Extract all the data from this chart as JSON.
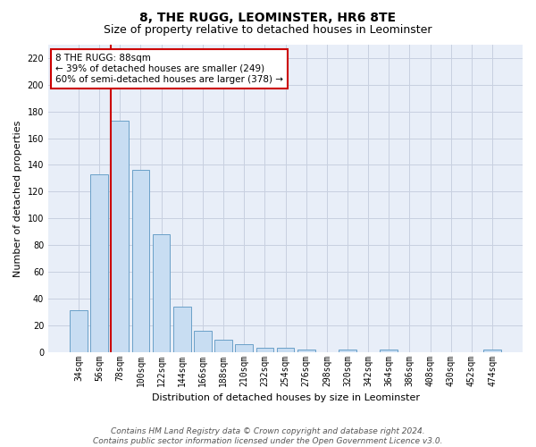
{
  "title": "8, THE RUGG, LEOMINSTER, HR6 8TE",
  "subtitle": "Size of property relative to detached houses in Leominster",
  "xlabel": "Distribution of detached houses by size in Leominster",
  "ylabel": "Number of detached properties",
  "categories": [
    "34sqm",
    "56sqm",
    "78sqm",
    "100sqm",
    "122sqm",
    "144sqm",
    "166sqm",
    "188sqm",
    "210sqm",
    "232sqm",
    "254sqm",
    "276sqm",
    "298sqm",
    "320sqm",
    "342sqm",
    "364sqm",
    "386sqm",
    "408sqm",
    "430sqm",
    "452sqm",
    "474sqm"
  ],
  "values": [
    31,
    133,
    173,
    136,
    88,
    34,
    16,
    9,
    6,
    3,
    3,
    2,
    0,
    2,
    0,
    2,
    0,
    0,
    0,
    0,
    2
  ],
  "bar_color": "#c8ddf2",
  "bar_edge_color": "#6aa0c8",
  "redline_index": 2,
  "annotation_line1": "8 THE RUGG: 88sqm",
  "annotation_line2": "← 39% of detached houses are smaller (249)",
  "annotation_line3": "60% of semi-detached houses are larger (378) →",
  "annotation_box_color": "#ffffff",
  "annotation_box_edge_color": "#cc0000",
  "ylim": [
    0,
    230
  ],
  "yticks": [
    0,
    20,
    40,
    60,
    80,
    100,
    120,
    140,
    160,
    180,
    200,
    220
  ],
  "grid_color": "#c8d0e0",
  "background_color": "#e8eef8",
  "footer_text": "Contains HM Land Registry data © Crown copyright and database right 2024.\nContains public sector information licensed under the Open Government Licence v3.0.",
  "title_fontsize": 10,
  "subtitle_fontsize": 9,
  "xlabel_fontsize": 8,
  "ylabel_fontsize": 8,
  "tick_fontsize": 7,
  "annotation_fontsize": 7.5,
  "footer_fontsize": 6.5
}
